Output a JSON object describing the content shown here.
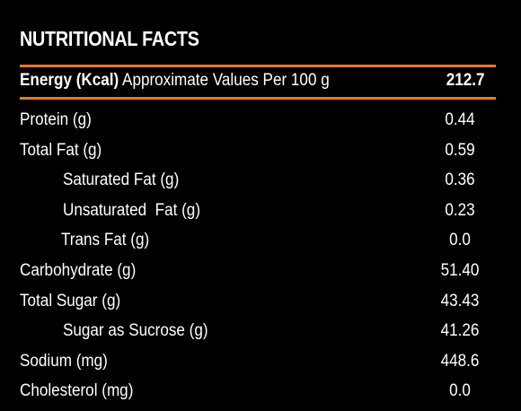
{
  "title": "NUTRITIONAL FACTS",
  "energy": {
    "label_bold": "Energy (Kcal)",
    "label_rest": " Approximate Values Per 100 g",
    "value": "212.7"
  },
  "accent_color": "#e8782a",
  "nutrients": [
    {
      "label": "Protein (g)",
      "value": "0.44"
    },
    {
      "label": "Total Fat (g)",
      "value": "0.59"
    },
    {
      "label": "Saturated Fat (g)",
      "value": "0.36"
    },
    {
      "label": "Unsaturated  Fat (g)",
      "value": "0.23"
    },
    {
      "label": "Trans Fat (g)",
      "value": "0.0"
    },
    {
      "label": "Carbohydrate (g)",
      "value": "51.40"
    },
    {
      "label": "Total Sugar (g)",
      "value": "43.43"
    },
    {
      "label": "Sugar as Sucrose (g)",
      "value": "41.26"
    },
    {
      "label": "Sodium (mg)",
      "value": "448.6"
    },
    {
      "label": "Cholesterol (mg)",
      "value": "0.0"
    }
  ]
}
